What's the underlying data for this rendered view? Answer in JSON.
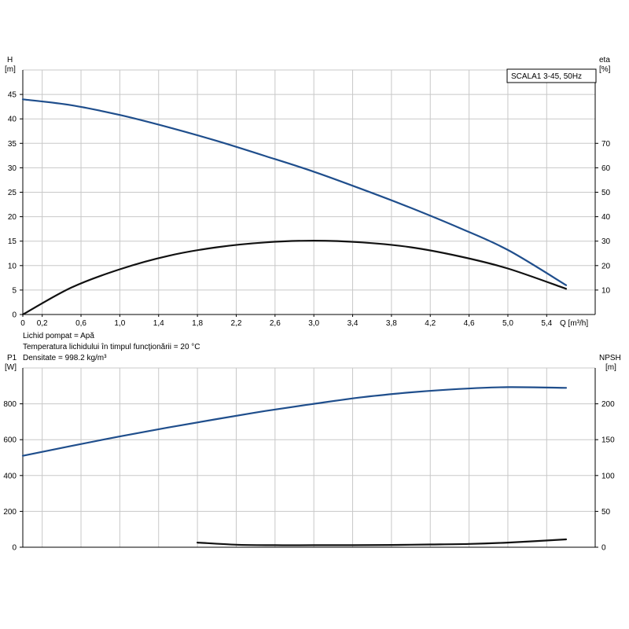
{
  "chart_data": [
    {
      "type": "line",
      "title": "",
      "model_label": "SCALA1 3-45, 50Hz",
      "xlabel": "Q [m³/h]",
      "xlim": [
        0,
        5.9
      ],
      "xticks": [
        "0",
        "0,2",
        "0,6",
        "1,0",
        "1,4",
        "1,8",
        "2,2",
        "2,6",
        "3,0",
        "3,4",
        "3,8",
        "4,2",
        "4,6",
        "5,0",
        "5,4"
      ],
      "xtick_values": [
        0,
        0.2,
        0.6,
        1.0,
        1.4,
        1.8,
        2.2,
        2.6,
        3.0,
        3.4,
        3.8,
        4.2,
        4.6,
        5.0,
        5.4
      ],
      "y_left": {
        "label": "H",
        "unit": "[m]",
        "lim": [
          0,
          50
        ],
        "ticks": [
          0,
          5,
          10,
          15,
          20,
          25,
          30,
          35,
          40,
          45
        ]
      },
      "y_right": {
        "label": "eta",
        "unit": "[%]",
        "lim": [
          0,
          100
        ],
        "ticks": [
          10,
          20,
          30,
          40,
          50,
          60,
          70
        ]
      },
      "grid": true,
      "series": [
        {
          "axis": "left",
          "color": "#1f4e8c",
          "x": [
            0,
            0.5,
            1.0,
            1.5,
            2.0,
            2.5,
            3.0,
            3.5,
            4.0,
            4.5,
            5.0,
            5.6
          ],
          "values": [
            44,
            42.8,
            40.8,
            38.3,
            35.5,
            32.4,
            29.2,
            25.6,
            21.8,
            17.7,
            13.2,
            6.0
          ]
        },
        {
          "axis": "right",
          "color": "#111111",
          "x": [
            0,
            0.5,
            1.0,
            1.5,
            2.0,
            2.5,
            3.0,
            3.5,
            4.0,
            4.5,
            5.0,
            5.6
          ],
          "values": [
            0,
            11,
            18.5,
            24,
            27.5,
            29.5,
            30.2,
            29.5,
            27.5,
            23.8,
            18.8,
            10.5
          ]
        }
      ]
    },
    {
      "type": "line",
      "title": "",
      "xlim": [
        0,
        5.9
      ],
      "y_left": {
        "label": "P1",
        "unit": "[W]",
        "lim": [
          0,
          1000
        ],
        "ticks": [
          0,
          200,
          400,
          600,
          800
        ]
      },
      "y_right": {
        "label": "NPSH",
        "unit": "[m]",
        "lim": [
          0,
          250
        ],
        "ticks": [
          0,
          50,
          100,
          150,
          200
        ]
      },
      "grid": true,
      "series": [
        {
          "axis": "left",
          "color": "#1f4e8c",
          "x": [
            0,
            0.5,
            1.0,
            1.5,
            2.0,
            2.5,
            3.0,
            3.5,
            4.0,
            4.5,
            5.0,
            5.6
          ],
          "values": [
            510,
            565,
            618,
            668,
            715,
            760,
            800,
            837,
            864,
            883,
            893,
            889
          ]
        },
        {
          "axis": "right",
          "color": "#111111",
          "x": [
            1.8,
            2.2,
            2.6,
            3.0,
            3.4,
            3.8,
            4.2,
            4.6,
            5.0,
            5.6
          ],
          "values": [
            6.5,
            3.5,
            2.8,
            2.8,
            2.9,
            3.2,
            3.8,
            4.6,
            6.5,
            11
          ]
        }
      ]
    }
  ],
  "notes": {
    "liquid": "Lichid pompat = Apă",
    "temperature": "Temperatura lichidului în timpul funcţionării = 20 °C",
    "density": "Densitate = 998.2 kg/m³"
  }
}
